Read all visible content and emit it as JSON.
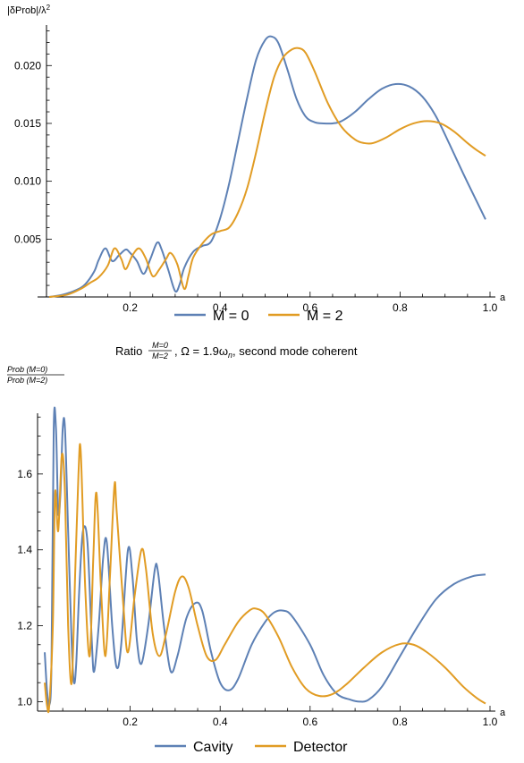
{
  "colors": {
    "blue": "#5e81b5",
    "orange": "#e19c24",
    "axis": "#000000"
  },
  "chart_data": [
    {
      "type": "line",
      "title": "",
      "ylabel": "|δProb|/λ²",
      "ylabel_parts": {
        "main": "|δProb|/λ",
        "sup": "2"
      },
      "xlabel": "a",
      "xlim": [
        0.0,
        1.0
      ],
      "ylim": [
        0.0,
        0.0235
      ],
      "x_ticks": [
        "0.2",
        "0.4",
        "0.6",
        "0.8",
        "1.0"
      ],
      "y_ticks": [
        "0.005",
        "0.010",
        "0.015",
        "0.020"
      ],
      "legend_position": "bottom",
      "legend": [
        "M = 0",
        "M = 2"
      ],
      "series": [
        {
          "name": "M = 0",
          "color": "#5e81b5",
          "points": [
            [
              0.02,
              0.0
            ],
            [
              0.05,
              0.0002
            ],
            [
              0.08,
              0.0006
            ],
            [
              0.1,
              0.0011
            ],
            [
              0.12,
              0.0022
            ],
            [
              0.13,
              0.0032
            ],
            [
              0.145,
              0.0042
            ],
            [
              0.16,
              0.0031
            ],
            [
              0.175,
              0.0036
            ],
            [
              0.19,
              0.0041
            ],
            [
              0.2,
              0.0038
            ],
            [
              0.215,
              0.0031
            ],
            [
              0.23,
              0.002
            ],
            [
              0.245,
              0.0033
            ],
            [
              0.26,
              0.0047
            ],
            [
              0.27,
              0.0041
            ],
            [
              0.285,
              0.0023
            ],
            [
              0.3,
              0.0005
            ],
            [
              0.31,
              0.0011
            ],
            [
              0.32,
              0.0025
            ],
            [
              0.34,
              0.0039
            ],
            [
              0.36,
              0.0044
            ],
            [
              0.38,
              0.0048
            ],
            [
              0.4,
              0.0068
            ],
            [
              0.42,
              0.0098
            ],
            [
              0.44,
              0.0135
            ],
            [
              0.46,
              0.0172
            ],
            [
              0.48,
              0.0205
            ],
            [
              0.5,
              0.0222
            ],
            [
              0.515,
              0.0225
            ],
            [
              0.53,
              0.0219
            ],
            [
              0.55,
              0.0196
            ],
            [
              0.57,
              0.0171
            ],
            [
              0.59,
              0.0156
            ],
            [
              0.61,
              0.0151
            ],
            [
              0.63,
              0.015
            ],
            [
              0.65,
              0.015
            ],
            [
              0.67,
              0.0152
            ],
            [
              0.7,
              0.016
            ],
            [
              0.73,
              0.0171
            ],
            [
              0.76,
              0.018
            ],
            [
              0.79,
              0.0184
            ],
            [
              0.82,
              0.0182
            ],
            [
              0.85,
              0.0173
            ],
            [
              0.88,
              0.0156
            ],
            [
              0.91,
              0.0132
            ],
            [
              0.94,
              0.0107
            ],
            [
              0.97,
              0.0083
            ],
            [
              0.99,
              0.0067
            ]
          ]
        },
        {
          "name": "M = 2",
          "color": "#e19c24",
          "points": [
            [
              0.02,
              0.0
            ],
            [
              0.06,
              0.0002
            ],
            [
              0.09,
              0.0007
            ],
            [
              0.11,
              0.0012
            ],
            [
              0.13,
              0.0017
            ],
            [
              0.15,
              0.0027
            ],
            [
              0.165,
              0.0042
            ],
            [
              0.18,
              0.0033
            ],
            [
              0.19,
              0.0024
            ],
            [
              0.205,
              0.0036
            ],
            [
              0.22,
              0.0042
            ],
            [
              0.235,
              0.0033
            ],
            [
              0.25,
              0.0018
            ],
            [
              0.265,
              0.0024
            ],
            [
              0.28,
              0.0033
            ],
            [
              0.29,
              0.0038
            ],
            [
              0.305,
              0.0028
            ],
            [
              0.32,
              0.0007
            ],
            [
              0.33,
              0.0019
            ],
            [
              0.34,
              0.0034
            ],
            [
              0.36,
              0.0046
            ],
            [
              0.38,
              0.0054
            ],
            [
              0.4,
              0.0057
            ],
            [
              0.42,
              0.006
            ],
            [
              0.44,
              0.0073
            ],
            [
              0.46,
              0.0094
            ],
            [
              0.48,
              0.0125
            ],
            [
              0.5,
              0.016
            ],
            [
              0.52,
              0.019
            ],
            [
              0.54,
              0.0207
            ],
            [
              0.56,
              0.0214
            ],
            [
              0.575,
              0.0215
            ],
            [
              0.59,
              0.0211
            ],
            [
              0.61,
              0.0195
            ],
            [
              0.64,
              0.0167
            ],
            [
              0.67,
              0.0147
            ],
            [
              0.7,
              0.0136
            ],
            [
              0.72,
              0.0133
            ],
            [
              0.74,
              0.0133
            ],
            [
              0.77,
              0.0138
            ],
            [
              0.8,
              0.0145
            ],
            [
              0.83,
              0.015
            ],
            [
              0.86,
              0.0152
            ],
            [
              0.89,
              0.015
            ],
            [
              0.92,
              0.0143
            ],
            [
              0.95,
              0.0133
            ],
            [
              0.97,
              0.0127
            ],
            [
              0.99,
              0.0122
            ]
          ]
        }
      ]
    },
    {
      "type": "line",
      "title": "Ratio M=0/M=2, Ω = 1.9ω_n, second mode coherent",
      "title_parts": {
        "pre": "Ratio ",
        "num": "M=0",
        "den": "M=2",
        "post": ", Ω = 1.9ω",
        "sub": "n",
        "tail": ", second mode coherent"
      },
      "ylabel": "Prob(M=0)/Prob(M=2)",
      "ylabel_parts": {
        "num": "Prob (M=0)",
        "den": "Prob (M=2)"
      },
      "xlabel": "a",
      "xlim": [
        0.0,
        1.0
      ],
      "ylim": [
        0.975,
        1.76
      ],
      "x_ticks": [
        "0.2",
        "0.4",
        "0.6",
        "0.8",
        "1.0"
      ],
      "y_ticks": [
        "1.0",
        "1.2",
        "1.4",
        "1.6"
      ],
      "legend_position": "bottom",
      "legend": [
        "Cavity",
        "Detector"
      ],
      "series": [
        {
          "name": "Cavity",
          "color": "#5e81b5",
          "points": [
            [
              0.01,
              1.13
            ],
            [
              0.015,
              1.03
            ],
            [
              0.02,
              0.99
            ],
            [
              0.025,
              1.1
            ],
            [
              0.03,
              1.72
            ],
            [
              0.035,
              1.72
            ],
            [
              0.04,
              1.5
            ],
            [
              0.045,
              1.55
            ],
            [
              0.05,
              1.72
            ],
            [
              0.055,
              1.72
            ],
            [
              0.062,
              1.45
            ],
            [
              0.07,
              1.15
            ],
            [
              0.075,
              1.05
            ],
            [
              0.08,
              1.1
            ],
            [
              0.087,
              1.3
            ],
            [
              0.095,
              1.45
            ],
            [
              0.105,
              1.42
            ],
            [
              0.115,
              1.15
            ],
            [
              0.12,
              1.08
            ],
            [
              0.13,
              1.2
            ],
            [
              0.14,
              1.38
            ],
            [
              0.148,
              1.42
            ],
            [
              0.16,
              1.2
            ],
            [
              0.17,
              1.09
            ],
            [
              0.18,
              1.15
            ],
            [
              0.195,
              1.4
            ],
            [
              0.205,
              1.33
            ],
            [
              0.215,
              1.16
            ],
            [
              0.225,
              1.1
            ],
            [
              0.24,
              1.2
            ],
            [
              0.255,
              1.35
            ],
            [
              0.262,
              1.34
            ],
            [
              0.275,
              1.2
            ],
            [
              0.29,
              1.08
            ],
            [
              0.305,
              1.12
            ],
            [
              0.325,
              1.22
            ],
            [
              0.345,
              1.26
            ],
            [
              0.36,
              1.24
            ],
            [
              0.38,
              1.13
            ],
            [
              0.4,
              1.05
            ],
            [
              0.42,
              1.03
            ],
            [
              0.44,
              1.06
            ],
            [
              0.47,
              1.15
            ],
            [
              0.5,
              1.21
            ],
            [
              0.52,
              1.235
            ],
            [
              0.54,
              1.24
            ],
            [
              0.56,
              1.225
            ],
            [
              0.6,
              1.15
            ],
            [
              0.63,
              1.07
            ],
            [
              0.66,
              1.02
            ],
            [
              0.69,
              1.005
            ],
            [
              0.71,
              1.0
            ],
            [
              0.73,
              1.005
            ],
            [
              0.76,
              1.04
            ],
            [
              0.8,
              1.12
            ],
            [
              0.84,
              1.2
            ],
            [
              0.88,
              1.27
            ],
            [
              0.92,
              1.31
            ],
            [
              0.96,
              1.33
            ],
            [
              0.99,
              1.335
            ]
          ]
        },
        {
          "name": "Detector",
          "color": "#e19c24",
          "points": [
            [
              0.01,
              1.05
            ],
            [
              0.015,
              0.99
            ],
            [
              0.02,
              0.99
            ],
            [
              0.028,
              1.2
            ],
            [
              0.033,
              1.55
            ],
            [
              0.04,
              1.45
            ],
            [
              0.048,
              1.65
            ],
            [
              0.055,
              1.55
            ],
            [
              0.062,
              1.2
            ],
            [
              0.07,
              1.05
            ],
            [
              0.078,
              1.35
            ],
            [
              0.085,
              1.6
            ],
            [
              0.09,
              1.66
            ],
            [
              0.1,
              1.3
            ],
            [
              0.11,
              1.12
            ],
            [
              0.118,
              1.38
            ],
            [
              0.125,
              1.55
            ],
            [
              0.135,
              1.3
            ],
            [
              0.145,
              1.12
            ],
            [
              0.155,
              1.33
            ],
            [
              0.165,
              1.57
            ],
            [
              0.17,
              1.5
            ],
            [
              0.185,
              1.25
            ],
            [
              0.195,
              1.13
            ],
            [
              0.21,
              1.28
            ],
            [
              0.225,
              1.4
            ],
            [
              0.235,
              1.35
            ],
            [
              0.25,
              1.18
            ],
            [
              0.265,
              1.12
            ],
            [
              0.28,
              1.18
            ],
            [
              0.3,
              1.29
            ],
            [
              0.315,
              1.33
            ],
            [
              0.33,
              1.3
            ],
            [
              0.35,
              1.2
            ],
            [
              0.37,
              1.12
            ],
            [
              0.39,
              1.11
            ],
            [
              0.41,
              1.15
            ],
            [
              0.44,
              1.21
            ],
            [
              0.465,
              1.24
            ],
            [
              0.48,
              1.245
            ],
            [
              0.5,
              1.23
            ],
            [
              0.53,
              1.17
            ],
            [
              0.56,
              1.09
            ],
            [
              0.59,
              1.035
            ],
            [
              0.62,
              1.015
            ],
            [
              0.65,
              1.02
            ],
            [
              0.68,
              1.045
            ],
            [
              0.72,
              1.09
            ],
            [
              0.76,
              1.13
            ],
            [
              0.8,
              1.152
            ],
            [
              0.83,
              1.15
            ],
            [
              0.86,
              1.13
            ],
            [
              0.9,
              1.09
            ],
            [
              0.94,
              1.04
            ],
            [
              0.97,
              1.01
            ],
            [
              0.99,
              0.995
            ]
          ]
        }
      ]
    }
  ]
}
